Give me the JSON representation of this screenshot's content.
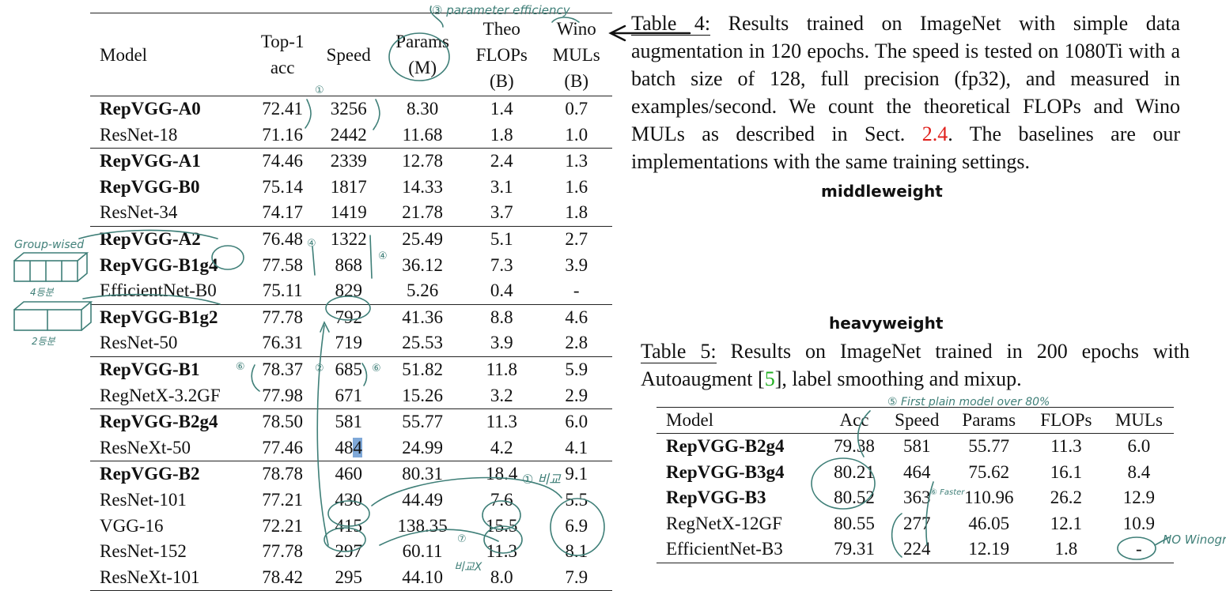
{
  "table4": {
    "headers": {
      "model": "Model",
      "top1_line1": "Top-1",
      "top1_line2": "acc",
      "speed": "Speed",
      "params_line1": "Params",
      "params_line2": "(M)",
      "theo_line1": "Theo",
      "theo_line2": "FLOPs",
      "theo_line3": "(B)",
      "wino_line1": "Wino",
      "wino_line2": "MULs",
      "wino_line3": "(B)"
    },
    "rows": [
      {
        "model": "RepVGG-A0",
        "acc": "72.41",
        "speed": "3256",
        "params": "8.30",
        "flops": "1.4",
        "muls": "0.7"
      },
      {
        "model": "ResNet-18",
        "acc": "71.16",
        "speed": "2442",
        "params": "11.68",
        "flops": "1.8",
        "muls": "1.0"
      },
      {
        "model": "RepVGG-A1",
        "acc": "74.46",
        "speed": "2339",
        "params": "12.78",
        "flops": "2.4",
        "muls": "1.3"
      },
      {
        "model": "RepVGG-B0",
        "acc": "75.14",
        "speed": "1817",
        "params": "14.33",
        "flops": "3.1",
        "muls": "1.6"
      },
      {
        "model": "ResNet-34",
        "acc": "74.17",
        "speed": "1419",
        "params": "21.78",
        "flops": "3.7",
        "muls": "1.8"
      },
      {
        "model": "RepVGG-A2",
        "acc": "76.48",
        "speed": "1322",
        "params": "25.49",
        "flops": "5.1",
        "muls": "2.7"
      },
      {
        "model": "RepVGG-B1g4",
        "acc": "77.58",
        "speed": "868",
        "params": "36.12",
        "flops": "7.3",
        "muls": "3.9"
      },
      {
        "model": "EfficientNet-B0",
        "acc": "75.11",
        "speed": "829",
        "params": "5.26",
        "flops": "0.4",
        "muls": "-"
      },
      {
        "model": "RepVGG-B1g2",
        "acc": "77.78",
        "speed": "792",
        "params": "41.36",
        "flops": "8.8",
        "muls": "4.6"
      },
      {
        "model": "ResNet-50",
        "acc": "76.31",
        "speed": "719",
        "params": "25.53",
        "flops": "3.9",
        "muls": "2.8"
      },
      {
        "model": "RepVGG-B1",
        "acc": "78.37",
        "speed": "685",
        "params": "51.82",
        "flops": "11.8",
        "muls": "5.9"
      },
      {
        "model": "RegNetX-3.2GF",
        "acc": "77.98",
        "speed": "671",
        "params": "15.26",
        "flops": "3.2",
        "muls": "2.9"
      },
      {
        "model": "RepVGG-B2g4",
        "acc": "78.50",
        "speed": "581",
        "params": "55.77",
        "flops": "11.3",
        "muls": "6.0"
      },
      {
        "model": "ResNeXt-50",
        "acc": "77.46",
        "speed_a": "48",
        "speed_b": "4",
        "params": "24.99",
        "flops": "4.2",
        "muls": "4.1"
      },
      {
        "model": "RepVGG-B2",
        "acc": "78.78",
        "speed": "460",
        "params": "80.31",
        "flops": "18.4",
        "muls": "9.1"
      },
      {
        "model": "ResNet-101",
        "acc": "77.21",
        "speed": "430",
        "params": "44.49",
        "flops": "7.6",
        "muls": "5.5"
      },
      {
        "model": "VGG-16",
        "acc": "72.21",
        "speed": "415",
        "params": "138.35",
        "flops": "15.5",
        "muls": "6.9"
      },
      {
        "model": "ResNet-152",
        "acc": "77.78",
        "speed": "297",
        "params": "60.11",
        "flops": "11.3",
        "muls": "8.1"
      },
      {
        "model": "ResNeXt-101",
        "acc": "78.42",
        "speed": "295",
        "params": "44.10",
        "flops": "8.0",
        "muls": "7.9"
      }
    ]
  },
  "caption4": {
    "label": "Table 4:",
    "text_a": " Results trained on ImageNet with simple data augmentation in 120 epochs.  The speed is tested on 1080Ti with a batch size of 128, full precision (fp32), and measured in examples/second. We count the theoretical FLOPs and Wino MULs as described in Sect. ",
    "ref": "2.4",
    "text_b": ". The baselines are our implementations with the same training settings."
  },
  "label_middle": "middleweight",
  "label_heavy": "heavyweight",
  "caption5": {
    "label": "Table 5:",
    "text_a": " Results on ImageNet trained in 200 epochs with Autoaugment [",
    "ref": "5",
    "text_b": "], label smoothing and mixup."
  },
  "table5": {
    "headers": {
      "model": "Model",
      "acc": "Acc",
      "speed": "Speed",
      "params": "Params",
      "flops": "FLOPs",
      "muls": "MULs"
    },
    "rows": [
      {
        "model": "RepVGG-B2g4",
        "acc": "79.38",
        "speed": "581",
        "params": "55.77",
        "flops": "11.3",
        "muls": "6.0"
      },
      {
        "model": "RepVGG-B3g4",
        "acc": "80.21",
        "speed": "464",
        "params": "75.62",
        "flops": "16.1",
        "muls": "8.4"
      },
      {
        "model": "RepVGG-B3",
        "acc": "80.52",
        "speed": "363",
        "params": "110.96",
        "flops": "26.2",
        "muls": "12.9"
      },
      {
        "model": "RegNetX-12GF",
        "acc": "80.55",
        "speed": "277",
        "params": "46.05",
        "flops": "12.1",
        "muls": "10.9"
      },
      {
        "model": "EfficientNet-B3",
        "acc": "79.31",
        "speed": "224",
        "params": "12.19",
        "flops": "1.8",
        "muls": "-"
      }
    ]
  },
  "annotations": {
    "param_eff": "③ parameter efficiency",
    "first_plain": "⑤ First plain model over 80%",
    "faster": "⑥ Faster",
    "group_wised": "Group-wised",
    "korean_4": "4등분",
    "korean_2": "2등분",
    "bigyo": "① 비교",
    "bigyo2": "비교X",
    "no_wino": "NO Winograd conv",
    "mark_1": "①",
    "mark_4": "④",
    "mark_2": "②",
    "mark_6": "⑥",
    "mark_7": "⑦"
  },
  "colors": {
    "ink": "#3f7f78",
    "highlight": "#7fa8d8",
    "ref_red": "#e0201c",
    "ref_green": "#22b022"
  }
}
